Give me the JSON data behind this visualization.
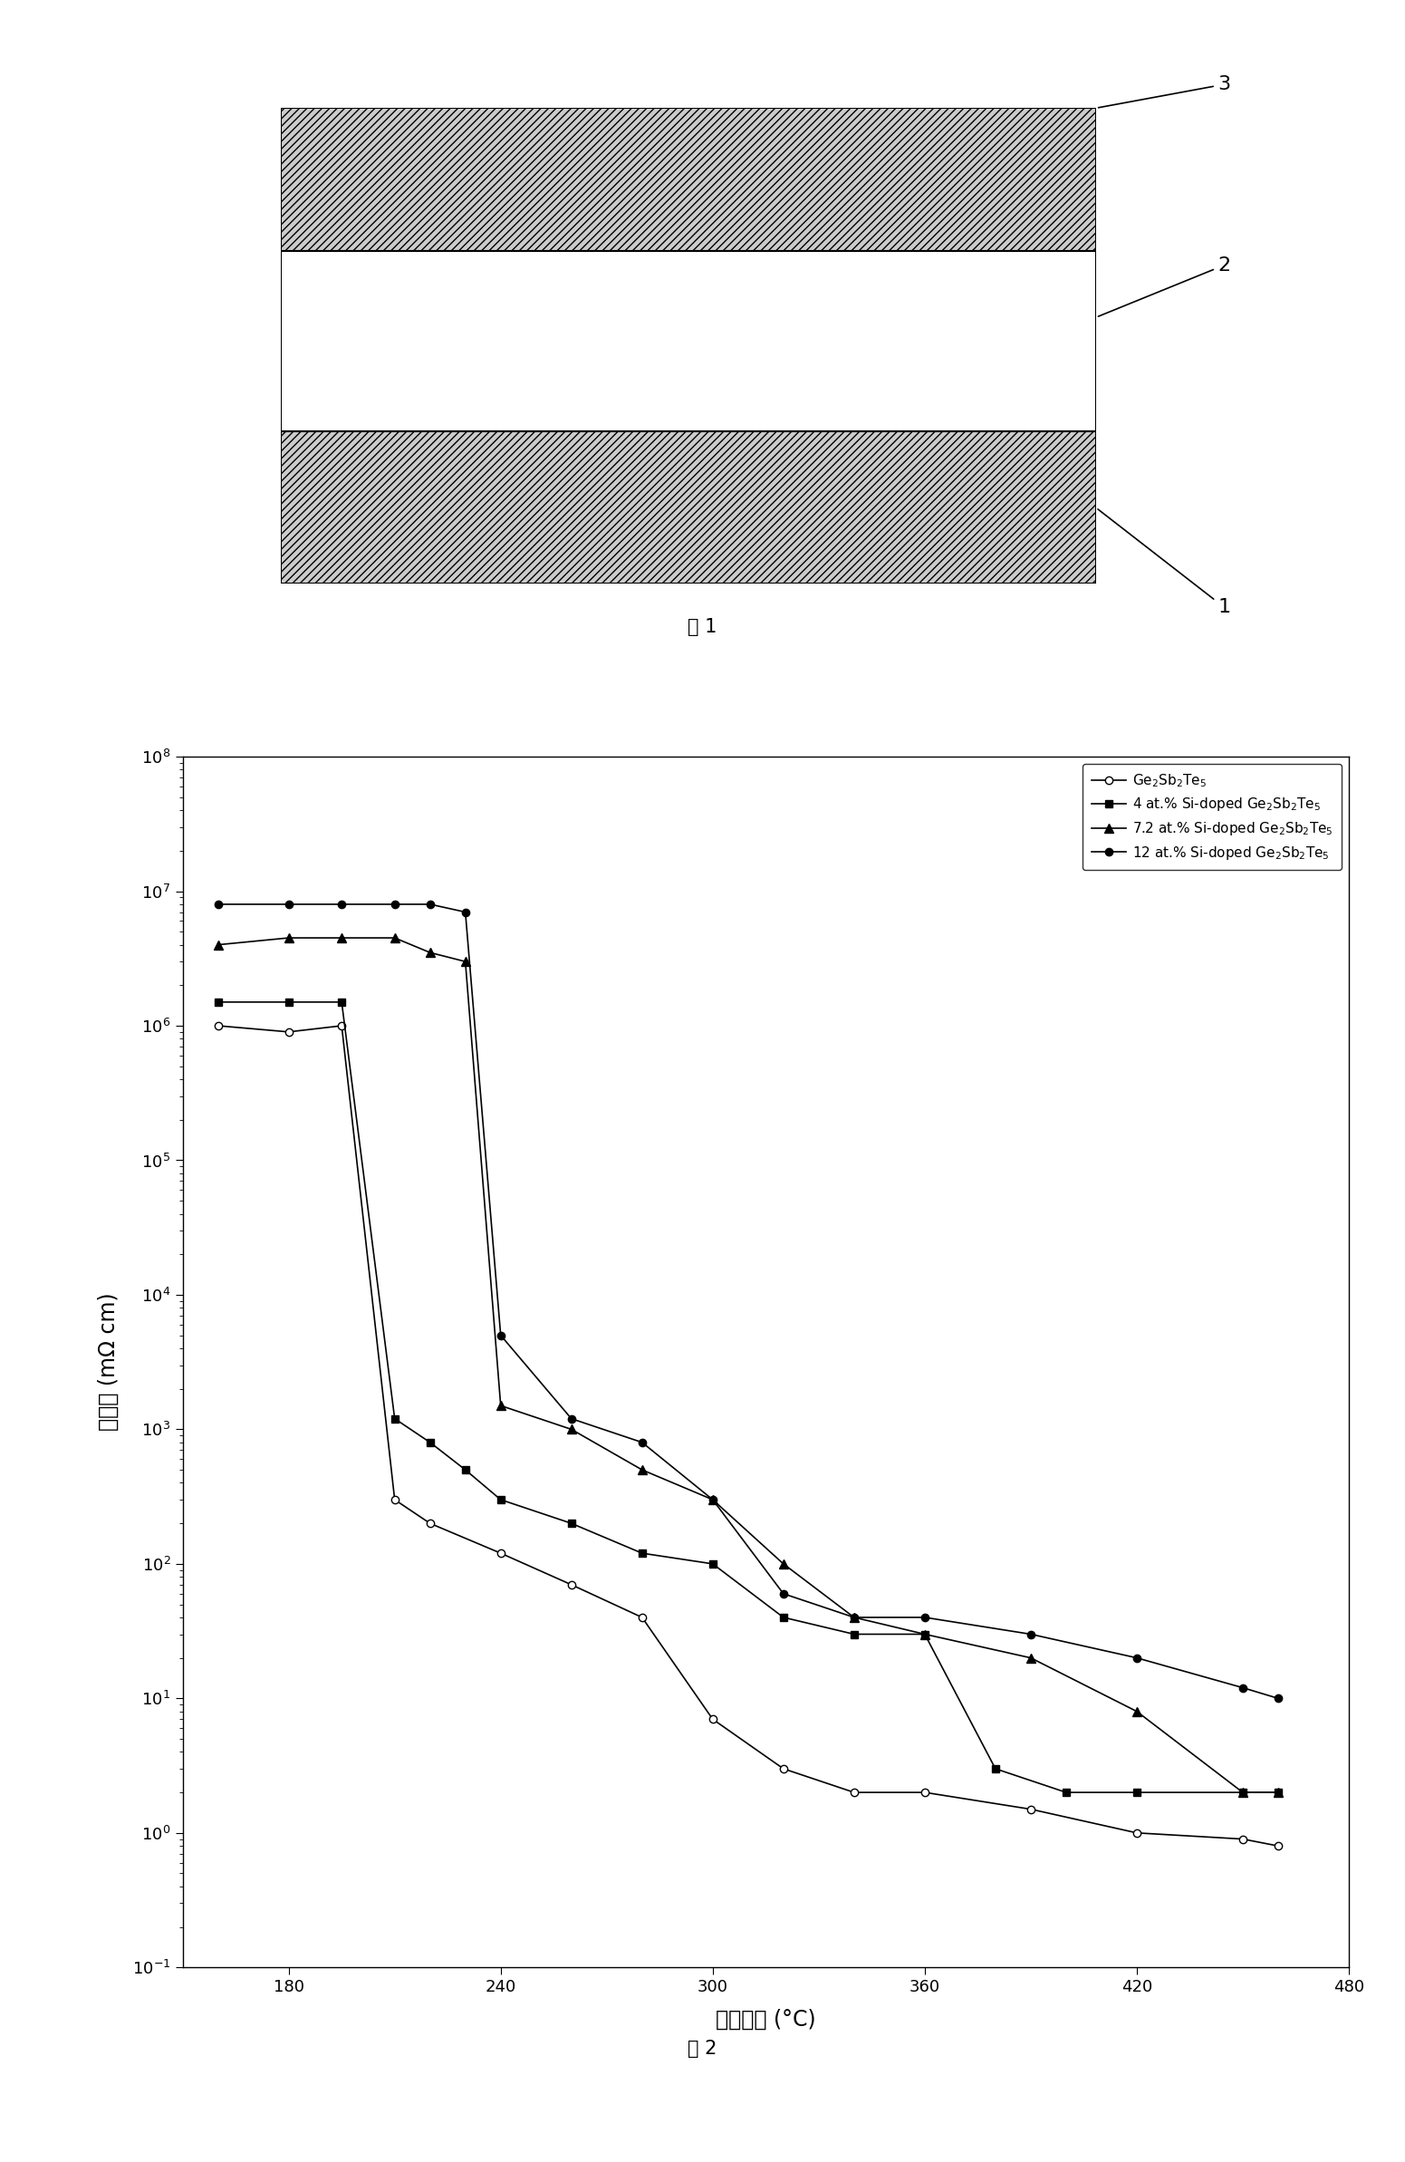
{
  "fig1": {
    "title": "图 1",
    "label_3": "3",
    "label_2": "2",
    "label_1": "1"
  },
  "fig2": {
    "title": "图 2",
    "xlabel": "退火温度 (°C)",
    "ylabel": "电阵率 (mΩ cm)",
    "xlim": [
      150,
      480
    ],
    "xticks": [
      180,
      240,
      300,
      360,
      420,
      480
    ],
    "series": [
      {
        "label": "Ge$_2$Sb$_2$Te$_5$",
        "marker": "o",
        "markerfacecolor": "white",
        "markeredgecolor": "black",
        "color": "black",
        "linewidth": 1.2,
        "markersize": 6,
        "x": [
          160,
          180,
          195,
          210,
          220,
          240,
          260,
          280,
          300,
          320,
          340,
          360,
          390,
          420,
          450,
          460
        ],
        "y": [
          1000000.0,
          900000.0,
          1000000.0,
          300.0,
          200.0,
          120.0,
          70.0,
          40.0,
          7.0,
          3.0,
          2.0,
          2.0,
          1.5,
          1.0,
          0.9,
          0.8
        ]
      },
      {
        "label": "4 at.% Si-doped Ge$_2$Sb$_2$Te$_5$",
        "marker": "s",
        "markerfacecolor": "black",
        "markeredgecolor": "black",
        "color": "black",
        "linewidth": 1.2,
        "markersize": 6,
        "x": [
          160,
          180,
          195,
          210,
          220,
          230,
          240,
          260,
          280,
          300,
          320,
          340,
          360,
          380,
          400,
          420,
          450,
          460
        ],
        "y": [
          1500000.0,
          1500000.0,
          1500000.0,
          1200.0,
          800.0,
          500.0,
          300.0,
          200.0,
          120.0,
          100.0,
          40.0,
          30.0,
          30.0,
          3.0,
          2.0,
          2.0,
          2.0,
          2.0
        ]
      },
      {
        "label": "7.2 at.% Si-doped Ge$_2$Sb$_2$Te$_5$",
        "marker": "^",
        "markerfacecolor": "black",
        "markeredgecolor": "black",
        "color": "black",
        "linewidth": 1.2,
        "markersize": 7,
        "x": [
          160,
          180,
          195,
          210,
          220,
          230,
          240,
          260,
          280,
          300,
          320,
          340,
          360,
          390,
          420,
          450,
          460
        ],
        "y": [
          4000000.0,
          4500000.0,
          4500000.0,
          4500000.0,
          3500000.0,
          3000000.0,
          1500.0,
          1000.0,
          500.0,
          300.0,
          100.0,
          40.0,
          30.0,
          20.0,
          8.0,
          2.0,
          2.0
        ]
      },
      {
        "label": "12 at.% Si-doped Ge$_2$Sb$_2$Te$_5$",
        "marker": "o",
        "markerfacecolor": "black",
        "markeredgecolor": "black",
        "color": "black",
        "linewidth": 1.2,
        "markersize": 6,
        "x": [
          160,
          180,
          195,
          210,
          220,
          230,
          240,
          260,
          280,
          300,
          320,
          340,
          360,
          390,
          420,
          450,
          460
        ],
        "y": [
          8000000.0,
          8000000.0,
          8000000.0,
          8000000.0,
          8000000.0,
          7000000.0,
          5000.0,
          1200.0,
          800.0,
          300.0,
          60.0,
          40.0,
          40.0,
          30.0,
          20.0,
          12.0,
          10.0
        ]
      }
    ]
  },
  "background_color": "#ffffff",
  "font_size_label": 15,
  "font_size_tick": 13,
  "font_size_legend": 11,
  "font_size_caption": 15
}
